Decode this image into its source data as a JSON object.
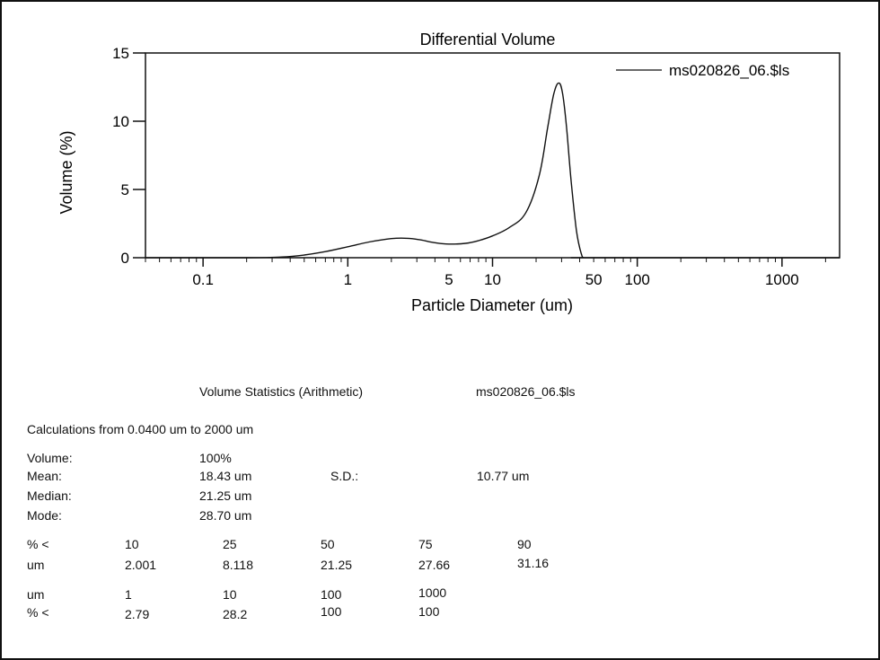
{
  "chart_data": {
    "type": "line",
    "title": "Differential Volume",
    "xlabel": "Particle Diameter (um)",
    "ylabel": "Volume (%)",
    "x_scale": "log",
    "xlim": [
      0.04,
      2500
    ],
    "ylim": [
      0,
      15
    ],
    "x_ticks": [
      0.1,
      1,
      5,
      10,
      50,
      100,
      1000
    ],
    "x_tick_labels": [
      "0.1",
      "1",
      "5",
      "10",
      "50",
      "100",
      "1000"
    ],
    "y_ticks": [
      0,
      5,
      10,
      15
    ],
    "y_tick_labels": [
      "0",
      "5",
      "10",
      "15"
    ],
    "legend_position": "top-right",
    "grid": false,
    "series": [
      {
        "name": "ms020826_06.$ls",
        "color": "#111111",
        "x": [
          0.04,
          0.2,
          0.35,
          0.5,
          0.7,
          1.0,
          1.4,
          2.0,
          2.6,
          3.2,
          4.0,
          5.0,
          6.5,
          8.0,
          10.0,
          13.0,
          17.0,
          21.0,
          24.0,
          26.5,
          28.7,
          30.5,
          32.5,
          35.0,
          38.0,
          41.0,
          43.0,
          50.0,
          2500
        ],
        "y": [
          0,
          0,
          0.05,
          0.2,
          0.45,
          0.8,
          1.15,
          1.4,
          1.42,
          1.3,
          1.1,
          1.0,
          1.05,
          1.25,
          1.6,
          2.2,
          3.3,
          6.0,
          9.5,
          12.0,
          12.8,
          12.0,
          9.5,
          5.5,
          2.0,
          0.3,
          0,
          0,
          0
        ]
      }
    ]
  },
  "stats": {
    "header_title": "Volume Statistics (Arithmetic)",
    "header_file": "ms020826_06.$ls",
    "calc_range": "Calculations from 0.0400 um to 2000 um",
    "volume_label": "Volume:",
    "volume_value": "100%",
    "mean_label": "Mean:",
    "mean_value": "18.43 um",
    "sd_label": "S.D.:",
    "sd_value": "10.77 um",
    "median_label": "Median:",
    "median_value": "21.25 um",
    "mode_label": "Mode:",
    "mode_value": "28.70 um",
    "pct_row_label": "% <",
    "pct_values": [
      "10",
      "25",
      "50",
      "75",
      "90"
    ],
    "um_row_label": "um",
    "um_values": [
      "2.001",
      "8.118",
      "21.25",
      "27.66",
      "31.16"
    ],
    "um2_row_label": "um",
    "um2_values": [
      "1",
      "10",
      "100",
      "1000"
    ],
    "pct2_row_label": "% <",
    "pct2_values": [
      "2.79",
      "28.2",
      "100",
      "100"
    ]
  }
}
